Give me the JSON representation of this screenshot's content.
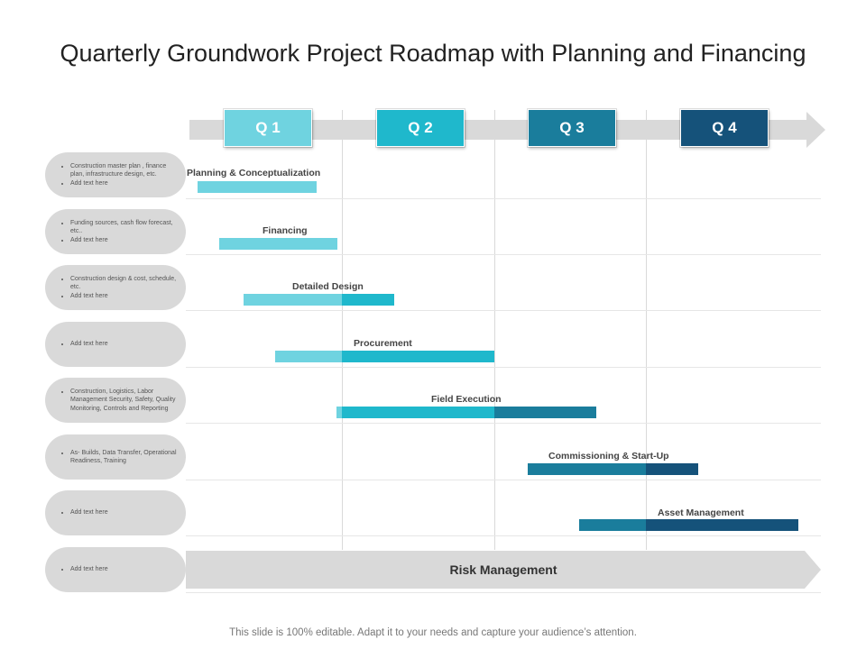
{
  "title": "Quarterly Groundwork Project Roadmap with Planning and Financing",
  "quarters": [
    "Q 1",
    "Q 2",
    "Q 3",
    "Q 4"
  ],
  "colors": {
    "q1": "#6fd3e0",
    "q2": "#1fb8cc",
    "q3": "#1a7d9c",
    "q4": "#15527a",
    "arrow": "#d9d9d9",
    "pill": "#d9d9d9"
  },
  "rows": [
    {
      "notes": [
        "Construction master plan , finance plan, infrastructure design, etc.",
        "Add text here"
      ]
    },
    {
      "notes": [
        "Funding sources, cash flow forecast, etc..",
        "Add text here"
      ]
    },
    {
      "notes": [
        "Construction design & cost, schedule, etc.",
        "Add text here"
      ]
    },
    {
      "notes": [
        "Add text here"
      ]
    },
    {
      "notes": [
        "Construction, Logistics, Labor Management Security, Safety, Quality Monitoring, Controls and Reporting"
      ]
    },
    {
      "notes": [
        "As- Builds, Data Transfer, Operational Readiness, Training"
      ]
    },
    {
      "notes": [
        "Add text here"
      ]
    },
    {
      "notes": [
        "Add text here"
      ]
    }
  ],
  "tasks": [
    {
      "label": "Planning & Conceptualization",
      "start": 0.05,
      "end": 0.83
    },
    {
      "label": "Financing",
      "start": 0.19,
      "end": 0.97
    },
    {
      "label": "Detailed Design",
      "start": 0.35,
      "end": 1.34
    },
    {
      "label": "Procurement",
      "start": 0.56,
      "end": 2.0
    },
    {
      "label": "Field Execution",
      "start": 0.96,
      "end": 2.67
    },
    {
      "label": "Commissioning & Start-Up",
      "start": 2.22,
      "end": 3.34
    },
    {
      "label": "Asset Management",
      "start": 2.56,
      "end": 4.0
    }
  ],
  "risk": "Risk Management",
  "footer": "This slide is 100% editable. Adapt it to your needs and capture your audience’s attention."
}
